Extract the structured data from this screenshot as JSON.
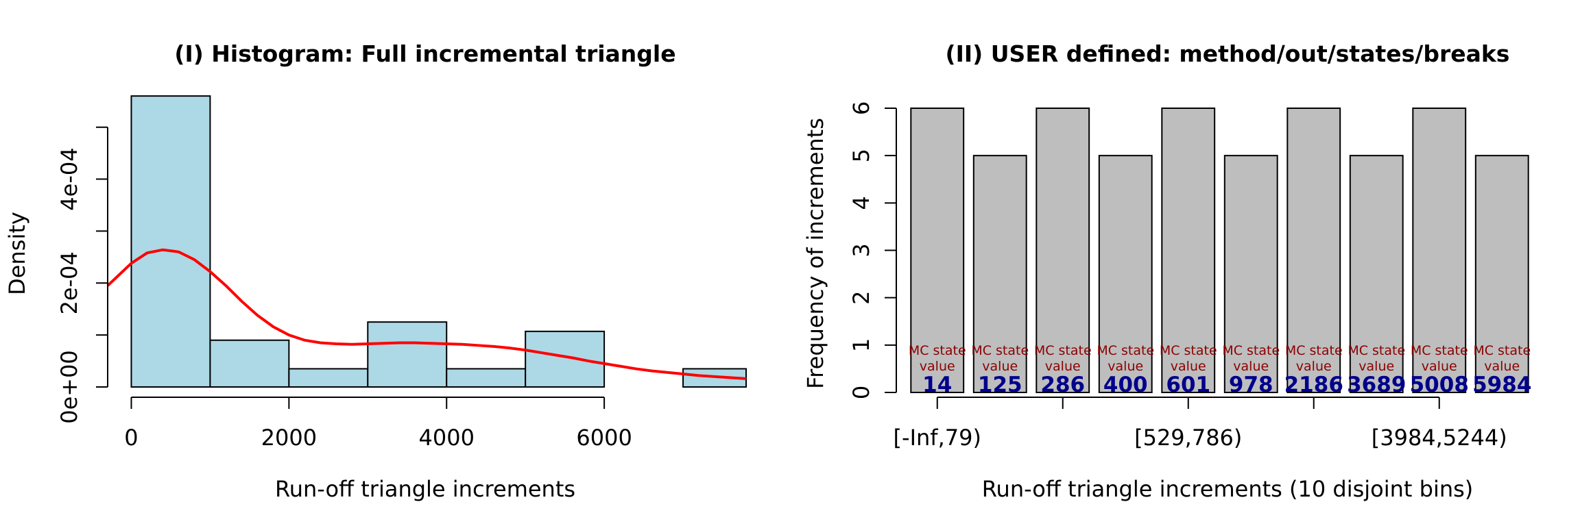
{
  "chart_data": [
    {
      "type": "bar",
      "subtype": "histogram-with-density",
      "title": "(I) Histogram: Full incremental triangle",
      "xlabel": "Run-off triangle increments",
      "ylabel": "Density",
      "xlim": [
        -300,
        7800
      ],
      "ylim": [
        0,
        0.00058
      ],
      "bin_edges": [
        0,
        1000,
        2000,
        3000,
        4000,
        5000,
        6000,
        7000,
        8000
      ],
      "values": [
        0.00056,
        9e-05,
        3.5e-05,
        0.000125,
        3.5e-05,
        0.000107,
        0.0,
        3.5e-05
      ],
      "bar_color": "#add8e6",
      "x_ticks": [
        0,
        2000,
        4000,
        6000
      ],
      "x_tick_labels": [
        "0",
        "2000",
        "4000",
        "6000"
      ],
      "y_ticks": [
        0,
        0.0001,
        0.0002,
        0.0003,
        0.0004,
        0.0005
      ],
      "y_tick_labels": [
        "0e+00",
        "",
        "2e-04",
        "",
        "4e-04",
        ""
      ],
      "density_curve": {
        "color": "#ff0000",
        "x": [
          -300,
          0,
          200,
          400,
          600,
          800,
          1000,
          1200,
          1400,
          1600,
          1800,
          2000,
          2200,
          2400,
          2600,
          2800,
          3000,
          3200,
          3400,
          3600,
          3800,
          4000,
          4200,
          4400,
          4600,
          4800,
          5000,
          5200,
          5400,
          5600,
          5800,
          6000,
          6200,
          6400,
          6600,
          6800,
          7000,
          7200,
          7400,
          7600,
          7800
        ],
        "y": [
          0.000195,
          0.000238,
          0.000258,
          0.000264,
          0.00026,
          0.000245,
          0.000222,
          0.000195,
          0.000165,
          0.000138,
          0.000116,
          0.0001,
          9e-05,
          8.5e-05,
          8.3e-05,
          8.2e-05,
          8.3e-05,
          8.4e-05,
          8.5e-05,
          8.5e-05,
          8.4e-05,
          8.3e-05,
          8.2e-05,
          8e-05,
          7.8e-05,
          7.5e-05,
          7.1e-05,
          6.6e-05,
          6.1e-05,
          5.6e-05,
          5e-05,
          4.5e-05,
          4e-05,
          3.5e-05,
          3.1e-05,
          2.8e-05,
          2.5e-05,
          2.2e-05,
          2e-05,
          1.8e-05,
          1.6e-05
        ]
      }
    },
    {
      "type": "bar",
      "title": "(II) USER defined: method/out/states/breaks",
      "xlabel": "Run-off triangle increments (10 disjoint bins)",
      "ylabel": "Frequency of increments",
      "ylim": [
        0,
        6
      ],
      "values": [
        6,
        5,
        6,
        5,
        6,
        5,
        6,
        5,
        6,
        5
      ],
      "bar_color": "#bebebe",
      "y_ticks": [
        0,
        1,
        2,
        3,
        4,
        5,
        6
      ],
      "y_tick_labels": [
        "0",
        "1",
        "2",
        "3",
        "4",
        "5",
        "6"
      ],
      "x_tick_labels": [
        "[-Inf,79)",
        "",
        "[529,786)",
        "",
        "[3984,5244)"
      ],
      "annotation_label": [
        "MC state",
        "value"
      ],
      "annotation_values": [
        "14",
        "125",
        "286",
        "400",
        "601",
        "978",
        "2186",
        "3689",
        "5008",
        "5984"
      ]
    }
  ]
}
